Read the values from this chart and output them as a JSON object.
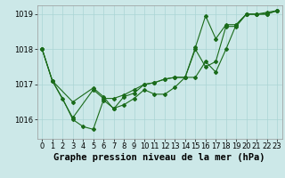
{
  "title": "Graphe pression niveau de la mer (hPa)",
  "bg_color": "#cce8e8",
  "line_color": "#1a6b1a",
  "xlim": [
    -0.5,
    23.5
  ],
  "ylim": [
    1015.45,
    1019.25
  ],
  "yticks": [
    1016,
    1017,
    1018,
    1019
  ],
  "xticks": [
    0,
    1,
    2,
    3,
    4,
    5,
    6,
    7,
    8,
    9,
    10,
    11,
    12,
    13,
    14,
    15,
    16,
    17,
    18,
    19,
    20,
    21,
    22,
    23
  ],
  "series1": {
    "x": [
      0,
      1,
      3,
      5,
      6,
      7,
      8,
      9,
      10,
      11,
      12,
      13,
      14,
      15,
      16,
      17,
      18,
      19,
      20,
      21,
      22,
      23
    ],
    "y": [
      1018.0,
      1017.1,
      1016.5,
      1016.9,
      1016.65,
      1016.3,
      1016.65,
      1016.75,
      1017.0,
      1017.05,
      1017.15,
      1017.2,
      1017.2,
      1018.05,
      1018.95,
      1018.3,
      1018.7,
      1018.7,
      1019.0,
      1019.0,
      1019.05,
      1019.1
    ]
  },
  "series2": {
    "x": [
      0,
      1,
      2,
      3,
      4,
      5,
      6,
      7,
      8,
      9,
      10,
      11,
      12,
      13,
      14,
      15,
      16,
      17,
      18,
      19,
      20,
      21,
      22,
      23
    ],
    "y": [
      1018.0,
      1017.1,
      1016.6,
      1016.0,
      1015.8,
      1015.72,
      1016.55,
      1016.32,
      1016.42,
      1016.6,
      1016.85,
      1016.72,
      1016.72,
      1016.92,
      1017.2,
      1017.2,
      1017.65,
      1017.35,
      1018.0,
      1018.7,
      1019.0,
      1019.0,
      1019.0,
      1019.1
    ]
  },
  "series3": {
    "x": [
      0,
      1,
      3,
      5,
      6,
      7,
      8,
      9,
      10,
      11,
      12,
      13,
      14,
      15,
      16,
      17,
      18,
      19,
      20,
      21,
      22,
      23
    ],
    "y": [
      1018.0,
      1017.1,
      1016.05,
      1016.85,
      1016.6,
      1016.6,
      1016.7,
      1016.85,
      1017.0,
      1017.05,
      1017.15,
      1017.2,
      1017.2,
      1018.0,
      1017.5,
      1017.65,
      1018.65,
      1018.65,
      1019.0,
      1019.0,
      1019.0,
      1019.1
    ]
  },
  "grid_color": "#aad4d4",
  "tick_fontsize": 6,
  "label_fontsize": 7.5
}
